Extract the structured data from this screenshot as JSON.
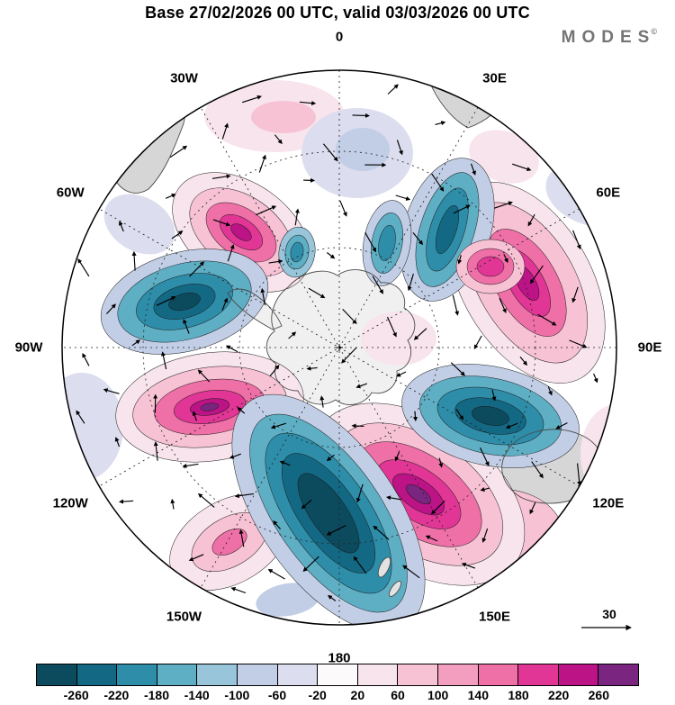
{
  "header": {
    "title": "Base 27/02/2026 00 UTC, valid 03/03/2026 00 UTC",
    "brand": "MODES",
    "brand_mark": "©"
  },
  "reference_vector": {
    "label": "30"
  },
  "chart_data": {
    "type": "heatmap",
    "title": "Base 27/02/2026 00 UTC, valid 03/03/2026 00 UTC",
    "projection": "polar-stereographic",
    "longitude_labels": [
      "0",
      "30E",
      "60E",
      "90E",
      "120E",
      "150E",
      "180",
      "150W",
      "120W",
      "90W",
      "60W",
      "30W"
    ],
    "longitude_angles_deg": [
      0,
      30,
      60,
      90,
      120,
      150,
      180,
      210,
      240,
      270,
      300,
      330
    ],
    "colorbar": {
      "position": "bottom",
      "tick_labels": [
        "-260",
        "-220",
        "-180",
        "-140",
        "-100",
        "-60",
        "-20",
        "20",
        "60",
        "100",
        "140",
        "180",
        "220",
        "260"
      ],
      "tick_values": [
        -260,
        -220,
        -180,
        -140,
        -100,
        -60,
        -20,
        20,
        60,
        100,
        140,
        180,
        220,
        260
      ],
      "colors": [
        "#0C4A5E",
        "#136984",
        "#2E8EA9",
        "#5EAEC4",
        "#98C5D9",
        "#C2CEE6",
        "#DCDDEE",
        "#FCFAFB",
        "#F8E4EC",
        "#F6C2D4",
        "#F49EBF",
        "#EF6FA7",
        "#E13695",
        "#BC1387",
        "#7A2681"
      ]
    },
    "vector_reference_value": 30,
    "overlays": [
      "filled anomaly contours",
      "wind vectors",
      "coastlines",
      "dashed graticule"
    ]
  }
}
